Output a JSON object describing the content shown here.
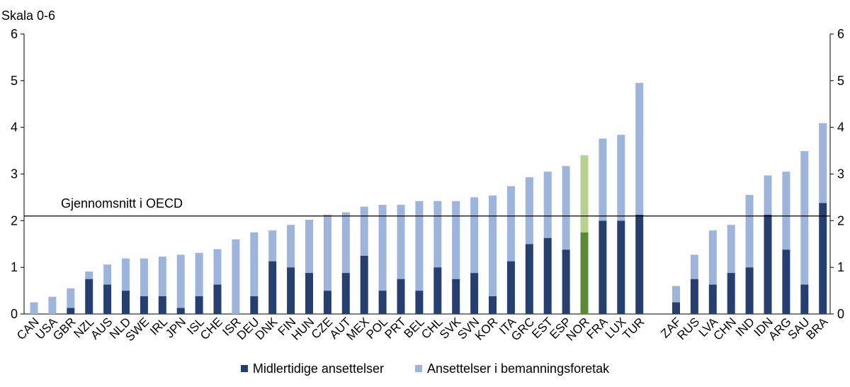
{
  "chart_data": {
    "type": "bar",
    "stacked": true,
    "ylabel": "Skala 0-6",
    "ylim": [
      0,
      6
    ],
    "yticks": [
      0,
      1,
      2,
      3,
      4,
      5,
      6
    ],
    "grid": false,
    "secondary_y_axis": true,
    "reference_line": {
      "label": "Gjennomsnitt i OECD",
      "value": 2.1
    },
    "categories": [
      "CAN",
      "USA",
      "GBR",
      "NZL",
      "AUS",
      "NLD",
      "SWE",
      "IRL",
      "JPN",
      "ISL",
      "CHE",
      "ISR",
      "DEU",
      "DNK",
      "FIN",
      "HUN",
      "CZE",
      "AUT",
      "MEX",
      "POL",
      "PRT",
      "BEL",
      "CHL",
      "SVK",
      "SVN",
      "KOR",
      "ITA",
      "GRC",
      "EST",
      "ESP",
      "NOR",
      "FRA",
      "LUX",
      "TUR",
      "ZAF",
      "RUS",
      "LVA",
      "CHN",
      "IND",
      "IDN",
      "ARG",
      "SAU",
      "BRA"
    ],
    "group_break_after": "TUR",
    "highlight_category": "NOR",
    "series": [
      {
        "name": "Midlertidige ansettelser",
        "values": [
          0,
          0,
          0.13,
          0.75,
          0.63,
          0.5,
          0.38,
          0.38,
          0.13,
          0.38,
          0.63,
          0,
          0.38,
          1.13,
          1.0,
          0.88,
          0.5,
          0.88,
          1.25,
          0.5,
          0.75,
          0.5,
          1.0,
          0.75,
          0.88,
          0.38,
          1.13,
          1.5,
          1.63,
          1.38,
          1.75,
          2.0,
          2.0,
          2.13,
          0.25,
          0.75,
          0.63,
          0.88,
          1.0,
          2.13,
          1.38,
          0.63,
          2.38
        ]
      },
      {
        "name": "Ansettelser i bemanningsforetak",
        "values": [
          0.25,
          0.37,
          0.42,
          0.16,
          0.43,
          0.69,
          0.81,
          0.85,
          1.14,
          0.93,
          0.76,
          1.6,
          1.37,
          0.66,
          0.91,
          1.14,
          1.63,
          1.3,
          1.05,
          1.84,
          1.59,
          1.92,
          1.42,
          1.67,
          1.62,
          2.16,
          1.61,
          1.43,
          1.42,
          1.79,
          1.65,
          1.76,
          1.84,
          2.82,
          0.35,
          0.52,
          1.16,
          1.03,
          1.55,
          0.84,
          1.67,
          2.86,
          1.71
        ]
      }
    ],
    "colors": {
      "Midlertidige ansettelser": "#243f70",
      "Ansettelser i bemanningsforetak": "#9db4dc",
      "highlight_lower": "#5a8a33",
      "highlight_upper": "#b7d28e"
    }
  }
}
